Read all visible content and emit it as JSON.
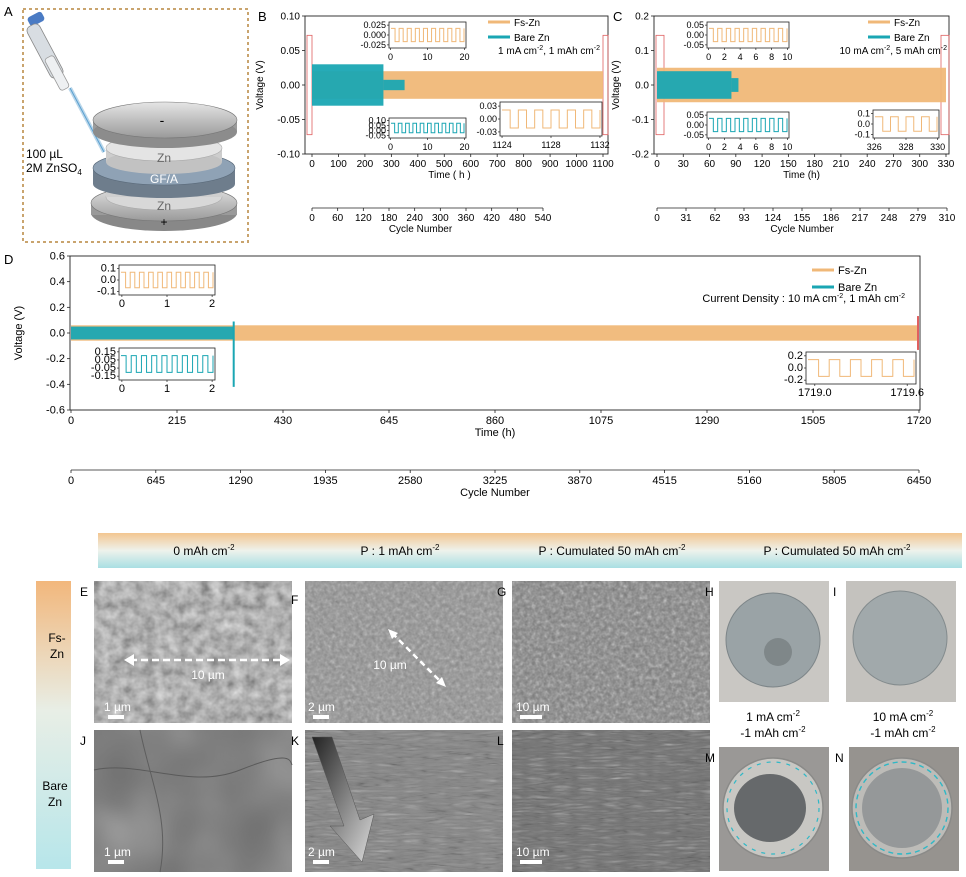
{
  "panel_letters": {
    "a": "A",
    "b": "B",
    "c": "C",
    "d": "D",
    "e": "E",
    "f": "F",
    "g": "G",
    "h": "H",
    "i": "I",
    "j": "J",
    "k": "K",
    "l": "L",
    "m": "M",
    "n": "N"
  },
  "panel_a": {
    "volume_label": "100 µL",
    "electrolyte_label": "2M ZnSO",
    "electrolyte_sub": "4",
    "layer_top_sign": "-",
    "layer_zn_top": "Zn",
    "layer_gfa": "GF/A",
    "layer_zn_bottom": "Zn",
    "layer_bottom_sign": "+"
  },
  "legend": {
    "fs": "Fs-Zn",
    "bare": "Bare Zn"
  },
  "colors": {
    "fs": "#f0b878",
    "bare": "#1aa6b3",
    "highlight": "#e06060"
  },
  "chart_data": [
    {
      "id": "B",
      "type": "line",
      "ylabel": "Voltage (V)",
      "xlabel": "Time ( h )",
      "x2label": "Cycle Number",
      "condition": "1 mA cm",
      "condition_rest": ", 1 mAh cm",
      "ylim": [
        -0.1,
        0.1
      ],
      "yticks": [
        "0.10",
        "0.05",
        "0.00",
        "-0.05",
        "-0.10"
      ],
      "xticks": [
        "0",
        "100",
        "200",
        "300",
        "400",
        "500",
        "600",
        "700",
        "800",
        "900",
        "1000",
        "1100"
      ],
      "x2ticks": [
        "0",
        "60",
        "120",
        "180",
        "240",
        "300",
        "360",
        "420",
        "480",
        "540"
      ],
      "series": [
        {
          "name": "Fs-Zn",
          "t_end": 1100,
          "amp_v": 0.02
        },
        {
          "name": "Bare Zn",
          "t_end": 270,
          "amp_v": 0.03
        }
      ],
      "insets": [
        {
          "series": "Fs-Zn",
          "yticks": [
            "0.025",
            "0.000",
            "-0.025"
          ],
          "xticks": [
            "0",
            "10",
            "20"
          ]
        },
        {
          "series": "Bare Zn",
          "yticks": [
            "0.10",
            "0.05",
            "0.00",
            "-0.05"
          ],
          "xticks": [
            "0",
            "10",
            "20"
          ]
        },
        {
          "series": "Fs-Zn",
          "yticks": [
            "0.03",
            "0.00",
            "-0.03"
          ],
          "xticks": [
            "1124",
            "1128",
            "1132"
          ]
        }
      ]
    },
    {
      "id": "C",
      "type": "line",
      "ylabel": "Voltage (V)",
      "xlabel": "Time (h)",
      "x2label": "Cycle Number",
      "condition": "10 mA cm",
      "condition_rest": ", 5 mAh cm",
      "ylim": [
        -0.2,
        0.2
      ],
      "yticks": [
        "0.2",
        "0.1",
        "0.0",
        "-0.1",
        "-0.2"
      ],
      "xticks": [
        "0",
        "30",
        "60",
        "90",
        "120",
        "150",
        "180",
        "210",
        "240",
        "270",
        "300",
        "330"
      ],
      "x2ticks": [
        "0",
        "31",
        "62",
        "93",
        "124",
        "155",
        "186",
        "217",
        "248",
        "279",
        "310"
      ],
      "series": [
        {
          "name": "Fs-Zn",
          "t_end": 330,
          "amp_v": 0.05
        },
        {
          "name": "Bare Zn",
          "t_end": 85,
          "amp_v": 0.04
        }
      ],
      "insets": [
        {
          "series": "Fs-Zn",
          "yticks": [
            "0.05",
            "0.00",
            "-0.05"
          ],
          "xticks": [
            "0",
            "2",
            "4",
            "6",
            "8",
            "10"
          ]
        },
        {
          "series": "Bare Zn",
          "yticks": [
            "0.05",
            "0.00",
            "-0.05"
          ],
          "xticks": [
            "0",
            "2",
            "4",
            "6",
            "8",
            "10"
          ]
        },
        {
          "series": "Fs-Zn",
          "yticks": [
            "0.1",
            "0.0",
            "-0.1"
          ],
          "xticks": [
            "326",
            "328",
            "330"
          ]
        }
      ]
    },
    {
      "id": "D",
      "type": "line",
      "ylabel": "Voltage (V)",
      "xlabel": "Time (h)",
      "x2label": "Cycle Number",
      "condition": "Current Density : 10 mA cm",
      "condition_rest": ", 1 mAh cm",
      "ylim": [
        -0.6,
        0.6
      ],
      "yticks": [
        "0.6",
        "0.4",
        "0.2",
        "0.0",
        "-0.2",
        "-0.4",
        "-0.6"
      ],
      "xticks": [
        "0",
        "215",
        "430",
        "645",
        "860",
        "1075",
        "1290",
        "1505",
        "1720"
      ],
      "x2ticks": [
        "0",
        "645",
        "1290",
        "1935",
        "2580",
        "3225",
        "3870",
        "4515",
        "5160",
        "5805",
        "6450"
      ],
      "series": [
        {
          "name": "Fs-Zn",
          "t_end": 1720,
          "amp_v": 0.06
        },
        {
          "name": "Bare Zn",
          "t_end": 330,
          "amp_v": 0.05
        }
      ],
      "insets": [
        {
          "series": "Fs-Zn",
          "yticks": [
            "0.1",
            "0.0",
            "-0.1"
          ],
          "xticks": [
            "0",
            "1",
            "2"
          ]
        },
        {
          "series": "Bare Zn",
          "yticks": [
            "0.15",
            "0.05",
            "-0.05",
            "-0.15"
          ],
          "xticks": [
            "0",
            "1",
            "2"
          ]
        },
        {
          "series": "Fs-Zn",
          "yticks": [
            "0.2",
            "0.0",
            "-0.2"
          ],
          "xticks": [
            "1719.0",
            "1719.6"
          ]
        }
      ]
    }
  ],
  "sem_header": {
    "col1": "0 mAh cm",
    "col2": "P : 1 mAh cm",
    "col3": "P : Cumulated 50 mAh cm",
    "col4": "P : Cumulated 50 mAh cm",
    "exp": "-2"
  },
  "row_labels": {
    "fs_line1": "Fs-",
    "fs_line2": "Zn",
    "bare_line1": "Bare",
    "bare_line2": "Zn"
  },
  "sem": {
    "scale_1um": "1 µm",
    "scale_2um": "2 µm",
    "scale_10um": "10 µm",
    "measure_10um": "10 µm"
  },
  "photo_captions": {
    "h_line1": "1 mA cm",
    "h_line2": "-1 mAh cm",
    "i_line1": "10 mA cm",
    "i_line2": "-1 mAh cm",
    "exp": "-2"
  },
  "superscripts": {
    "minus2": "-2"
  }
}
